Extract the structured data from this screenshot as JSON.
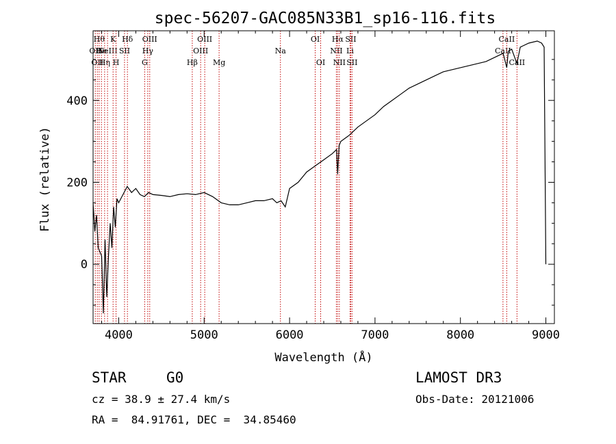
{
  "chart_data": {
    "type": "line",
    "title": "spec-56207-GAC085N33B1_sp16-116.fits",
    "xlabel": "Wavelength (Å)",
    "ylabel": "Flux (relative)",
    "xlim": [
      3700,
      9100
    ],
    "ylim": [
      -145,
      570
    ],
    "xticks": [
      4000,
      5000,
      6000,
      7000,
      8000,
      9000
    ],
    "yticks": [
      0,
      200,
      400
    ],
    "xtick_labels": [
      "4000",
      "5000",
      "6000",
      "7000",
      "8000",
      "9000"
    ],
    "ytick_labels": [
      "0",
      "200",
      "400"
    ],
    "series": [
      {
        "name": "flux",
        "x": [
          3700,
          3720,
          3740,
          3760,
          3780,
          3800,
          3820,
          3840,
          3860,
          3880,
          3900,
          3920,
          3940,
          3960,
          3980,
          4000,
          4050,
          4100,
          4150,
          4200,
          4250,
          4300,
          4350,
          4400,
          4500,
          4600,
          4700,
          4800,
          4900,
          5000,
          5100,
          5200,
          5300,
          5400,
          5500,
          5600,
          5700,
          5800,
          5850,
          5900,
          5950,
          6000,
          6100,
          6200,
          6300,
          6400,
          6500,
          6550,
          6563,
          6580,
          6600,
          6700,
          6800,
          6900,
          7000,
          7100,
          7200,
          7300,
          7400,
          7500,
          7600,
          7700,
          7800,
          7900,
          8000,
          8100,
          8200,
          8300,
          8400,
          8500,
          8542,
          8560,
          8600,
          8662,
          8700,
          8800,
          8900,
          8950,
          8980,
          9000
        ],
        "y": [
          150,
          80,
          120,
          40,
          30,
          20,
          -120,
          60,
          -80,
          20,
          100,
          40,
          140,
          90,
          160,
          150,
          170,
          190,
          175,
          185,
          170,
          165,
          175,
          170,
          168,
          165,
          170,
          172,
          170,
          175,
          165,
          150,
          145,
          145,
          150,
          155,
          155,
          160,
          150,
          155,
          140,
          185,
          200,
          225,
          240,
          255,
          270,
          280,
          220,
          290,
          300,
          315,
          335,
          350,
          365,
          385,
          400,
          415,
          430,
          440,
          450,
          460,
          470,
          475,
          480,
          485,
          490,
          495,
          505,
          515,
          480,
          520,
          525,
          490,
          530,
          540,
          545,
          540,
          530,
          0
        ]
      }
    ],
    "lines": [
      {
        "wave": 3726,
        "label": "OII",
        "row": 2
      },
      {
        "wave": 3750,
        "label": "OII",
        "row": 3
      },
      {
        "wave": 3771,
        "label": "Hθ",
        "row": 1
      },
      {
        "wave": 3798,
        "label": "He",
        "row": 2
      },
      {
        "wave": 3835,
        "label": "Hη",
        "row": 3
      },
      {
        "wave": 3869,
        "label": "NeIII",
        "row": 2
      },
      {
        "wave": 3934,
        "label": "K",
        "row": 1
      },
      {
        "wave": 3969,
        "label": "H",
        "row": 3
      },
      {
        "wave": 4068,
        "label": "SII",
        "row": 2
      },
      {
        "wave": 4102,
        "label": "Hδ",
        "row": 1
      },
      {
        "wave": 4304,
        "label": "G",
        "row": 3
      },
      {
        "wave": 4340,
        "label": "Hγ",
        "row": 2
      },
      {
        "wave": 4363,
        "label": "OIII",
        "row": 1
      },
      {
        "wave": 4861,
        "label": "Hβ",
        "row": 3
      },
      {
        "wave": 4959,
        "label": "OIII",
        "row": 2
      },
      {
        "wave": 5007,
        "label": "OIII",
        "row": 1
      },
      {
        "wave": 5175,
        "label": "Mg",
        "row": 3
      },
      {
        "wave": 5893,
        "label": "Na",
        "row": 2
      },
      {
        "wave": 6300,
        "label": "OI",
        "row": 1
      },
      {
        "wave": 6364,
        "label": "OI",
        "row": 3
      },
      {
        "wave": 6548,
        "label": "NII",
        "row": 2
      },
      {
        "wave": 6563,
        "label": "Hα",
        "row": 1
      },
      {
        "wave": 6583,
        "label": "NII",
        "row": 3
      },
      {
        "wave": 6708,
        "label": "Li",
        "row": 2
      },
      {
        "wave": 6716,
        "label": "SII",
        "row": 1
      },
      {
        "wave": 6731,
        "label": "SII",
        "row": 3
      },
      {
        "wave": 8498,
        "label": "CaII",
        "row": 2
      },
      {
        "wave": 8542,
        "label": "CaII",
        "row": 1
      },
      {
        "wave": 8662,
        "label": "CaII",
        "row": 3
      }
    ]
  },
  "info": {
    "object_class": "STAR",
    "subclass": "G0",
    "survey": "LAMOST DR3",
    "redshift": "cz = 38.9 ± 27.4 km/s",
    "obs_date": "Obs-Date: 20121006",
    "coords": "RA =  84.91761, DEC =  34.85460"
  },
  "colors": {
    "line_marker": "#c00000",
    "spectrum": "#000000"
  }
}
